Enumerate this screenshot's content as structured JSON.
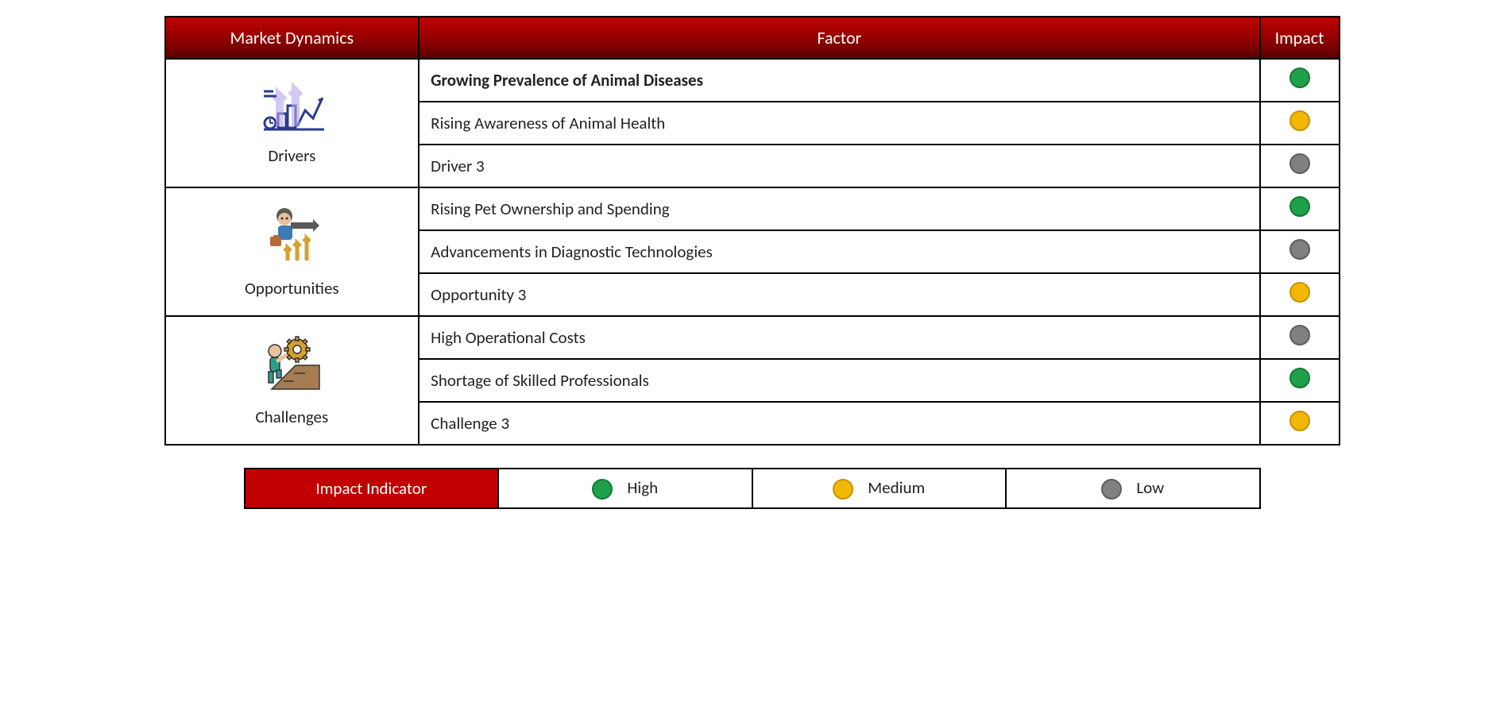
{
  "colors": {
    "header_gradient_top": "#c00000",
    "header_gradient_bottom": "#5a0000",
    "border": "#000000",
    "text": "#222222",
    "impact_high_fill": "#1fa04a",
    "impact_high_border": "#147a37",
    "impact_medium_fill": "#f2b800",
    "impact_medium_border": "#c79200",
    "impact_low_fill": "#808080",
    "impact_low_border": "#5e5e5e"
  },
  "headers": {
    "dynamics": "Market Dynamics",
    "factor": "Factor",
    "impact": "Impact"
  },
  "sections": [
    {
      "id": "drivers",
      "label": "Drivers",
      "icon": "drivers-icon",
      "rows": [
        {
          "text": "Growing Prevalence of Animal Diseases",
          "bold": true,
          "impact": "high"
        },
        {
          "text": "Rising Awareness of Animal Health",
          "bold": false,
          "impact": "medium"
        },
        {
          "text": "Driver 3",
          "bold": false,
          "impact": "low"
        }
      ]
    },
    {
      "id": "opportunities",
      "label": "Opportunities",
      "icon": "opportunities-icon",
      "rows": [
        {
          "text": "Rising Pet Ownership and Spending",
          "bold": false,
          "impact": "high"
        },
        {
          "text": "Advancements in Diagnostic Technologies",
          "bold": false,
          "impact": "low"
        },
        {
          "text": "Opportunity 3",
          "bold": false,
          "impact": "medium"
        }
      ]
    },
    {
      "id": "challenges",
      "label": "Challenges",
      "icon": "challenges-icon",
      "rows": [
        {
          "text": "High Operational Costs",
          "bold": false,
          "impact": "low"
        },
        {
          "text": "Shortage of Skilled Professionals",
          "bold": false,
          "impact": "high"
        },
        {
          "text": "Challenge 3",
          "bold": false,
          "impact": "medium"
        }
      ]
    }
  ],
  "legend": {
    "label": "Impact Indicator",
    "items": [
      {
        "text": "High",
        "impact": "high"
      },
      {
        "text": "Medium",
        "impact": "medium"
      },
      {
        "text": "Low",
        "impact": "low"
      }
    ]
  },
  "icons": {
    "drivers-icon": "<svg width='90' height='70' viewBox='0 0 90 70'><path d='M52 58 L62 38 L72 48 L84 22' stroke='#2c3a8f' stroke-width='3' fill='none'/><polygon points='84,22 78,24 82,30' fill='#2c3a8f'/><rect x='28' y='42' width='10' height='18' fill='none' stroke='#2c3a8f' stroke-width='3'/><rect x='40' y='32' width='10' height='28' fill='none' stroke='#2c3a8f' stroke-width='3'/><circle cx='18' cy='54' r='7' fill='none' stroke='#2c3a8f' stroke-width='3'/><line x1='18' y1='54' x2='18' y2='49' stroke='#2c3a8f' stroke-width='2'/><line x1='18' y1='54' x2='22' y2='54' stroke='#2c3a8f' stroke-width='2'/><line x1='10' y1='62' x2='86' y2='62' stroke='#2c3a8f' stroke-width='3'/><path d='M30 58 L30 20 L36 26 M30 20 L24 26' stroke='#b8a7e8' stroke-width='10' fill='none' opacity='0.6'/><path d='M50 58 L50 14 L56 20 M50 14 L44 20' stroke='#b8a7e8' stroke-width='10' fill='none' opacity='0.6'/><line x1='10' y1='14' x2='22' y2='14' stroke='#2c3a8f' stroke-width='3'/><line x1='10' y1='20' x2='26' y2='20' stroke='#2c3a8f' stroke-width='3'/><line x1='14' y1='14' x2='14' y2='14' stroke='#2c3a8f' stroke-width='3'/></svg>",
    "opportunities-icon": "<svg width='90' height='80' viewBox='0 0 90 80'><circle cx='36' cy='14' r='10' fill='#5a5a5a'/><circle cx='36' cy='18' r='8' fill='#e8c29a'/><circle cx='33' cy='17' r='1.5' fill='#333'/><circle cx='39' cy='17' r='1.5' fill='#333'/><rect x='28' y='26' width='18' height='18' rx='4' fill='#3a7ab5'/><rect x='44' y='22' width='28' height='8' fill='#5a5a5a'/><polygon points='72,18 80,26 72,34' fill='#5a5a5a'/><rect x='18' y='40' width='14' height='12' rx='2' fill='#b56a3a'/><rect x='22' y='38' width='6' height='4' fill='#b56a3a'/><path d='M40 70 L40 54 L44 58 M40 54 L36 58' stroke='#d4a030' stroke-width='5' fill='none'/><path d='M52 70 L52 48 L56 52 M52 48 L48 52' stroke='#d4a030' stroke-width='5' fill='none'/><path d='M64 70 L64 42 L68 46 M64 42 L60 46' stroke='#d4a030' stroke-width='5' fill='none'/></svg>",
    "challenges-icon": "<svg width='90' height='80' viewBox='0 0 90 80'><circle cx='24' cy='22' r='8' fill='#e8c29a' stroke='#333' stroke-width='1.5'/><rect x='18' y='30' width='12' height='18' rx='4' fill='#2a9d8f' stroke='#333' stroke-width='1.5'/><rect x='16' y='48' width='6' height='14' fill='#2a9d8f' stroke='#333' stroke-width='1.5'/><rect x='26' y='46' width='6' height='10' fill='#2a9d8f' stroke='#333' stroke-width='1.5'/><path d='M28 34 L40 26' stroke='#e8c29a' stroke-width='5' stroke-linecap='round'/><circle cx='52' cy='20' r='13' fill='#d4a030' stroke='#333' stroke-width='1.5'/><circle cx='52' cy='20' r='5' fill='#fff' stroke='#333' stroke-width='1.5'/><g stroke='#333' stroke-width='1.5' fill='#d4a030'><rect x='50' y='4' width='4' height='5'/><rect x='50' y='31' width='4' height='5'/><rect x='36' y='18' width='5' height='4'/><rect x='63' y='18' width='5' height='4'/><rect x='40' y='8' width='4' height='4' transform='rotate(45 42 10)'/><rect x='60' y='8' width='4' height='4' transform='rotate(45 62 10)'/><rect x='40' y='28' width='4' height='4' transform='rotate(45 42 30)'/><rect x='60' y='28' width='4' height='4' transform='rotate(45 62 30)'/></g><polygon points='20,70 80,70 80,40 50,40' fill='#a67c52' stroke='#333' stroke-width='1.5'/><line x1='35' y1='60' x2='48' y2='60' stroke='#333' stroke-width='1.5'/><line x1='48' y1='50' x2='62' y2='50' stroke='#333' stroke-width='1.5'/></svg>"
  }
}
